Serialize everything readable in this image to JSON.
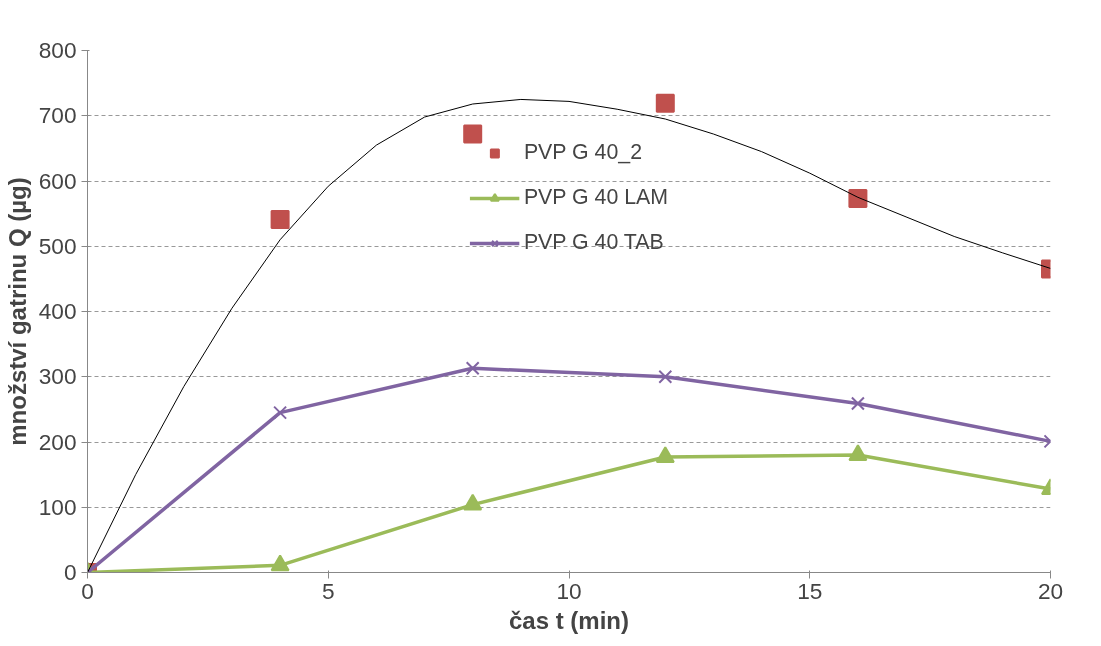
{
  "chart_data": {
    "type": "line",
    "xlabel": "čas t (min)",
    "ylabel": "množství gatrinu Q (µg)",
    "xlim": [
      0,
      20
    ],
    "xticks": [
      0,
      5,
      10,
      15,
      20
    ],
    "ylim": [
      0,
      800
    ],
    "yticks": [
      0,
      100,
      200,
      300,
      400,
      500,
      600,
      700,
      800
    ],
    "grid": "y",
    "legend": "top",
    "line_style": "solid",
    "series": [
      {
        "name": "PVP G 40_2",
        "type": "scatter",
        "marker": "square",
        "color": "#c0504d",
        "x": [
          0,
          4,
          8,
          12,
          16,
          20
        ],
        "values": [
          0,
          541,
          672,
          719,
          573,
          465
        ]
      },
      {
        "name": "PVP G 40 LAM",
        "marker": "triangle",
        "color": "#9bbb59",
        "x": [
          0,
          4,
          8,
          12,
          16,
          20
        ],
        "values": [
          0,
          11,
          104,
          177,
          180,
          128
        ]
      },
      {
        "name": "PVP G 40 TAB",
        "marker": "cross",
        "color": "#8064a2",
        "x": [
          0,
          4,
          8,
          12,
          16,
          20
        ],
        "values": [
          0,
          245,
          313,
          300,
          259,
          201
        ]
      },
      {
        "marker": "none",
        "color": "#000000",
        "x": [
          0,
          1,
          2,
          3,
          4,
          5,
          6,
          7,
          8,
          9,
          10,
          11,
          12,
          13,
          14,
          15,
          16,
          17,
          18,
          19,
          20
        ],
        "values": [
          0,
          150,
          285,
          405,
          510,
          592,
          655,
          698,
          718,
          725,
          722,
          710,
          695,
          672,
          645,
          612,
          575,
          545,
          515,
          490,
          466
        ]
      }
    ]
  }
}
